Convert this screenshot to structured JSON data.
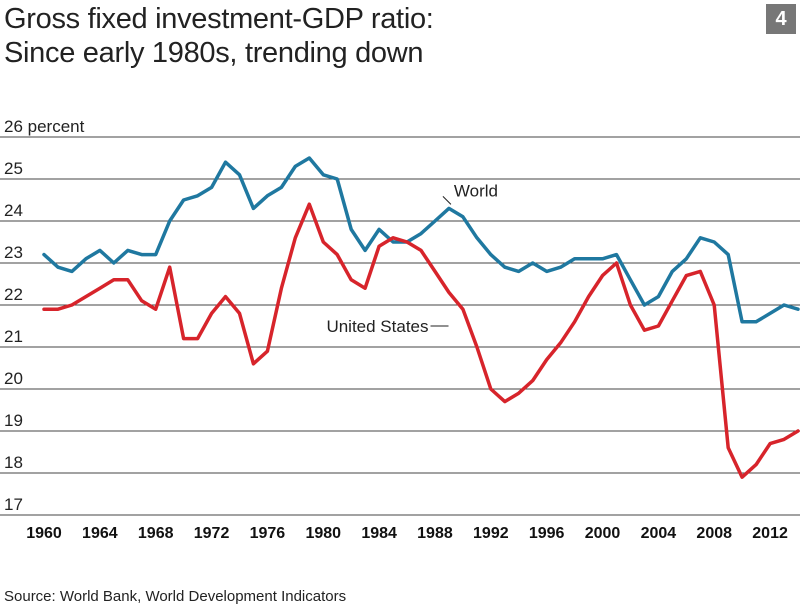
{
  "title_lines": [
    "Gross fixed investment-GDP ratio:",
    "Since early 1980s, trending down"
  ],
  "badge": "4",
  "source": "Source: World Bank, World Development Indicators",
  "chart_data": {
    "type": "line",
    "title": "Gross fixed investment-GDP ratio: Since early 1980s, trending down",
    "xlabel": "",
    "ylabel": "percent",
    "unit_label": "26 percent",
    "ylim": [
      17,
      26
    ],
    "xlim": [
      1960,
      2014
    ],
    "yticks": [
      {
        "value": 26,
        "label": "26 percent"
      },
      {
        "value": 25,
        "label": "25"
      },
      {
        "value": 24,
        "label": "24"
      },
      {
        "value": 23,
        "label": "23"
      },
      {
        "value": 22,
        "label": "22"
      },
      {
        "value": 21,
        "label": "21"
      },
      {
        "value": 20,
        "label": "20"
      },
      {
        "value": 19,
        "label": "19"
      },
      {
        "value": 18,
        "label": "18"
      },
      {
        "value": 17,
        "label": "17"
      }
    ],
    "xticks": [
      "1960",
      "1964",
      "1968",
      "1972",
      "1976",
      "1980",
      "1984",
      "1988",
      "1992",
      "1996",
      "2000",
      "2004",
      "2008",
      "2012"
    ],
    "x": [
      1960,
      1961,
      1962,
      1963,
      1964,
      1965,
      1966,
      1967,
      1968,
      1969,
      1970,
      1971,
      1972,
      1973,
      1974,
      1975,
      1976,
      1977,
      1978,
      1979,
      1980,
      1981,
      1982,
      1983,
      1984,
      1985,
      1986,
      1987,
      1988,
      1989,
      1990,
      1991,
      1992,
      1993,
      1994,
      1995,
      1996,
      1997,
      1998,
      1999,
      2000,
      2001,
      2002,
      2003,
      2004,
      2005,
      2006,
      2007,
      2008,
      2009,
      2010,
      2011,
      2012,
      2013,
      2014
    ],
    "series": [
      {
        "name": "World",
        "label": "World",
        "color": "#1f78a0",
        "values": [
          23.2,
          22.9,
          22.8,
          23.1,
          23.3,
          23.0,
          23.3,
          23.2,
          23.2,
          24.0,
          24.5,
          24.6,
          24.8,
          25.4,
          25.1,
          24.3,
          24.6,
          24.8,
          25.3,
          25.5,
          25.1,
          25.0,
          23.8,
          23.3,
          23.8,
          23.5,
          23.5,
          23.7,
          24.0,
          24.3,
          24.1,
          23.6,
          23.2,
          22.9,
          22.8,
          23.0,
          22.8,
          22.9,
          23.1,
          23.1,
          23.1,
          23.2,
          22.6,
          22.0,
          22.2,
          22.8,
          23.1,
          23.6,
          23.5,
          23.2,
          21.6,
          21.6,
          21.8,
          22.0,
          21.9
        ]
      },
      {
        "name": "United States",
        "label": "United States",
        "color": "#d7242b",
        "values": [
          21.9,
          21.9,
          22.0,
          22.2,
          22.4,
          22.6,
          22.6,
          22.1,
          21.9,
          22.9,
          21.2,
          21.2,
          21.8,
          22.2,
          21.8,
          20.6,
          20.9,
          22.4,
          23.6,
          24.4,
          23.5,
          23.2,
          22.6,
          22.4,
          23.4,
          23.6,
          23.5,
          23.3,
          22.8,
          22.3,
          21.9,
          21.0,
          20.0,
          19.7,
          19.9,
          20.2,
          20.7,
          21.1,
          21.6,
          22.2,
          22.7,
          23.0,
          22.0,
          21.4,
          21.5,
          22.1,
          22.7,
          22.8,
          22.0,
          18.6,
          17.9,
          18.2,
          18.7,
          18.8,
          19.0
        ]
      }
    ]
  }
}
